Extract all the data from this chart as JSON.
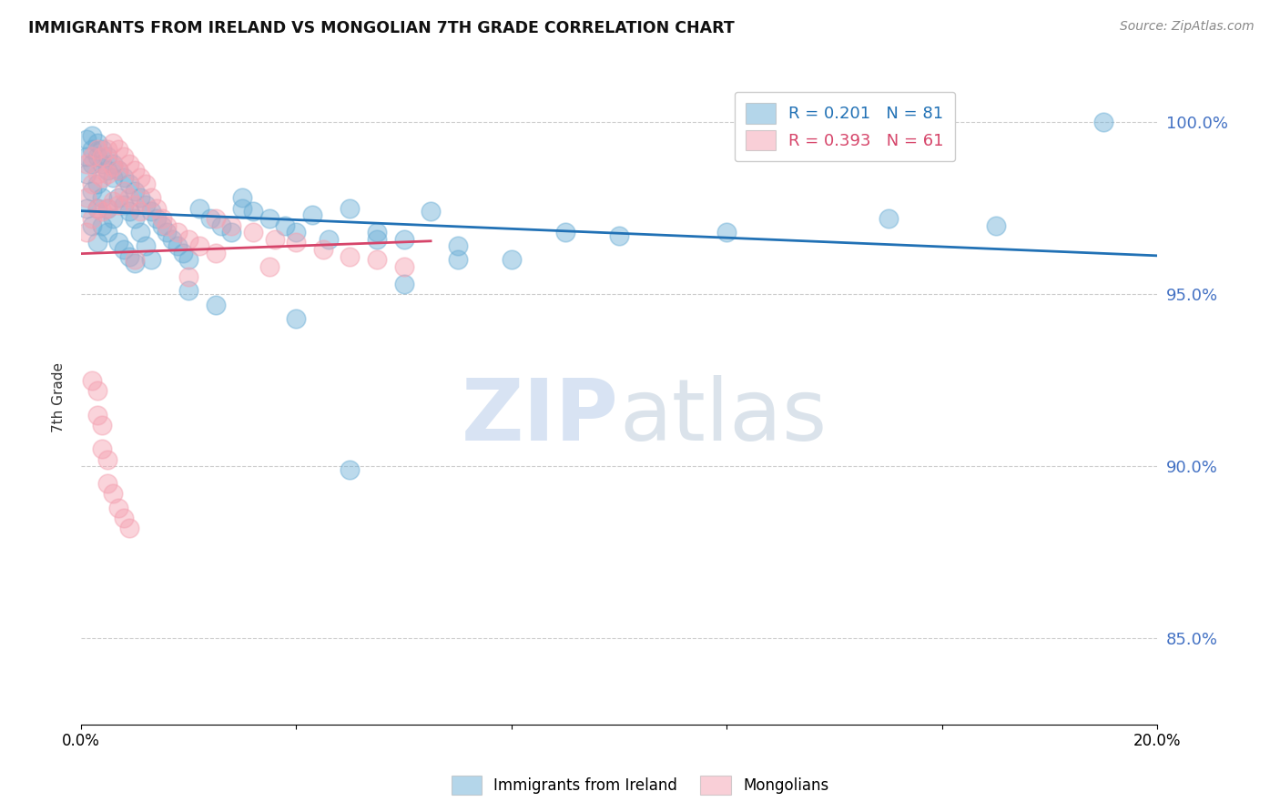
{
  "title": "IMMIGRANTS FROM IRELAND VS MONGOLIAN 7TH GRADE CORRELATION CHART",
  "source": "Source: ZipAtlas.com",
  "ylabel": "7th Grade",
  "ytick_labels": [
    "100.0%",
    "95.0%",
    "90.0%",
    "85.0%"
  ],
  "ytick_values": [
    1.0,
    0.95,
    0.9,
    0.85
  ],
  "xlim": [
    0.0,
    0.2
  ],
  "ylim": [
    0.825,
    1.015
  ],
  "legend_label_ireland": "R = 0.201   N = 81",
  "legend_label_mongolia": "R = 0.393   N = 61",
  "ireland_color": "#6baed6",
  "mongolia_color": "#f4a0b0",
  "ireland_line_color": "#2171b5",
  "mongolia_line_color": "#d6456a",
  "background_color": "#ffffff",
  "grid_color": "#cccccc",
  "watermark_zip": "ZIP",
  "watermark_atlas": "atlas",
  "ireland_x": [
    0.001,
    0.001,
    0.001,
    0.001,
    0.002,
    0.002,
    0.002,
    0.002,
    0.002,
    0.003,
    0.003,
    0.003,
    0.003,
    0.003,
    0.004,
    0.004,
    0.004,
    0.004,
    0.005,
    0.005,
    0.005,
    0.005,
    0.006,
    0.006,
    0.006,
    0.007,
    0.007,
    0.007,
    0.008,
    0.008,
    0.008,
    0.009,
    0.009,
    0.009,
    0.01,
    0.01,
    0.01,
    0.011,
    0.011,
    0.012,
    0.012,
    0.013,
    0.013,
    0.014,
    0.015,
    0.016,
    0.017,
    0.018,
    0.019,
    0.02,
    0.022,
    0.024,
    0.026,
    0.028,
    0.03,
    0.032,
    0.035,
    0.038,
    0.04,
    0.043,
    0.046,
    0.05,
    0.055,
    0.06,
    0.065,
    0.07,
    0.08,
    0.09,
    0.1,
    0.12,
    0.15,
    0.17,
    0.19,
    0.06,
    0.04,
    0.025,
    0.03,
    0.05,
    0.07,
    0.02,
    0.055
  ],
  "ireland_y": [
    0.985,
    0.99,
    0.995,
    0.975,
    0.988,
    0.992,
    0.996,
    0.98,
    0.97,
    0.99,
    0.994,
    0.982,
    0.975,
    0.965,
    0.988,
    0.992,
    0.978,
    0.97,
    0.986,
    0.99,
    0.975,
    0.968,
    0.984,
    0.988,
    0.972,
    0.986,
    0.978,
    0.965,
    0.984,
    0.976,
    0.963,
    0.982,
    0.974,
    0.961,
    0.98,
    0.972,
    0.959,
    0.978,
    0.968,
    0.976,
    0.964,
    0.974,
    0.96,
    0.972,
    0.97,
    0.968,
    0.966,
    0.964,
    0.962,
    0.96,
    0.975,
    0.972,
    0.97,
    0.968,
    0.978,
    0.974,
    0.972,
    0.97,
    0.968,
    0.973,
    0.966,
    0.975,
    0.968,
    0.966,
    0.974,
    0.964,
    0.96,
    0.968,
    0.967,
    0.968,
    0.972,
    0.97,
    1.0,
    0.953,
    0.943,
    0.947,
    0.975,
    0.899,
    0.96,
    0.951,
    0.966
  ],
  "mongolia_x": [
    0.001,
    0.001,
    0.001,
    0.002,
    0.002,
    0.002,
    0.003,
    0.003,
    0.003,
    0.004,
    0.004,
    0.004,
    0.005,
    0.005,
    0.005,
    0.006,
    0.006,
    0.006,
    0.007,
    0.007,
    0.007,
    0.008,
    0.008,
    0.009,
    0.009,
    0.01,
    0.01,
    0.011,
    0.011,
    0.012,
    0.013,
    0.014,
    0.015,
    0.016,
    0.018,
    0.02,
    0.022,
    0.025,
    0.028,
    0.032,
    0.036,
    0.04,
    0.045,
    0.05,
    0.055,
    0.06,
    0.002,
    0.003,
    0.003,
    0.004,
    0.004,
    0.005,
    0.005,
    0.006,
    0.007,
    0.008,
    0.009,
    0.01,
    0.035,
    0.02,
    0.025
  ],
  "mongolia_y": [
    0.988,
    0.978,
    0.968,
    0.99,
    0.982,
    0.972,
    0.992,
    0.985,
    0.975,
    0.99,
    0.984,
    0.974,
    0.992,
    0.985,
    0.975,
    0.994,
    0.987,
    0.977,
    0.992,
    0.986,
    0.976,
    0.99,
    0.98,
    0.988,
    0.978,
    0.986,
    0.976,
    0.984,
    0.974,
    0.982,
    0.978,
    0.975,
    0.972,
    0.97,
    0.968,
    0.966,
    0.964,
    0.972,
    0.97,
    0.968,
    0.966,
    0.965,
    0.963,
    0.961,
    0.96,
    0.958,
    0.925,
    0.922,
    0.915,
    0.912,
    0.905,
    0.902,
    0.895,
    0.892,
    0.888,
    0.885,
    0.882,
    0.96,
    0.958,
    0.955,
    0.962
  ]
}
